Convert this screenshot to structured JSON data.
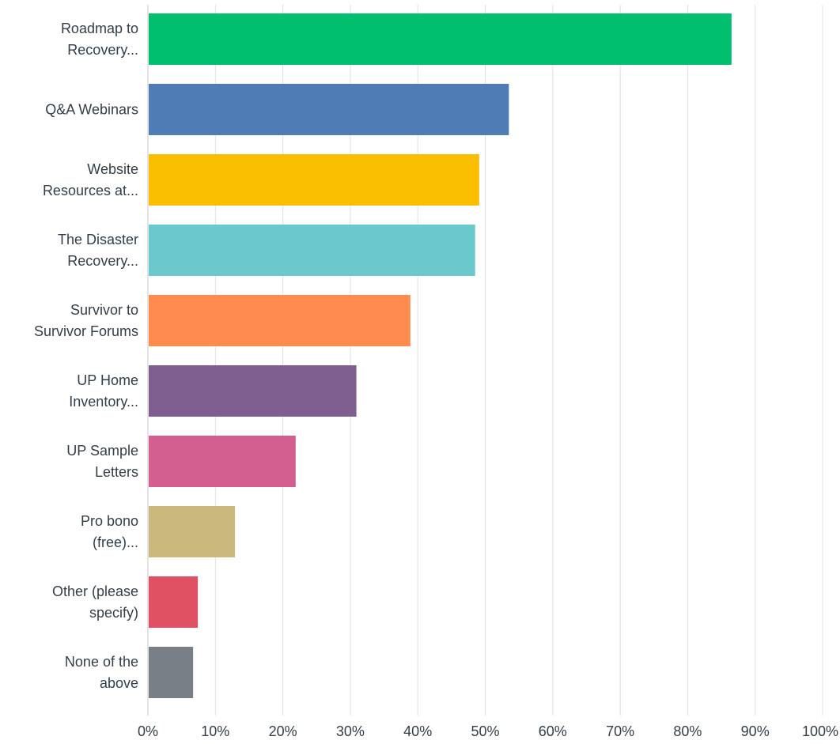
{
  "chart_data": {
    "type": "bar",
    "orientation": "horizontal",
    "categories": [
      [
        "Roadmap to",
        "Recovery..."
      ],
      [
        "Q&A Webinars"
      ],
      [
        "Website",
        "Resources at..."
      ],
      [
        "The Disaster",
        "Recovery..."
      ],
      [
        "Survivor to",
        "Survivor Forums"
      ],
      [
        "UP Home",
        "Inventory..."
      ],
      [
        "UP Sample",
        "Letters"
      ],
      [
        "Pro bono",
        "(free)..."
      ],
      [
        "Other (please",
        "specify)"
      ],
      [
        "None of the",
        "above"
      ]
    ],
    "values": [
      86.5,
      53.5,
      49.1,
      48.5,
      38.9,
      30.9,
      21.9,
      12.9,
      7.4,
      6.7
    ],
    "colors": [
      "#00bf6f",
      "#507cb6",
      "#f9be00",
      "#6bc8cd",
      "#ff8b4f",
      "#7f5f90",
      "#d25f90",
      "#c9b97c",
      "#df5163",
      "#787f86"
    ],
    "xlim": [
      0,
      100
    ],
    "xticks": [
      "0%",
      "10%",
      "20%",
      "30%",
      "40%",
      "50%",
      "60%",
      "70%",
      "80%",
      "90%",
      "100%"
    ],
    "grid": true,
    "title": "",
    "xlabel": "",
    "ylabel": ""
  }
}
